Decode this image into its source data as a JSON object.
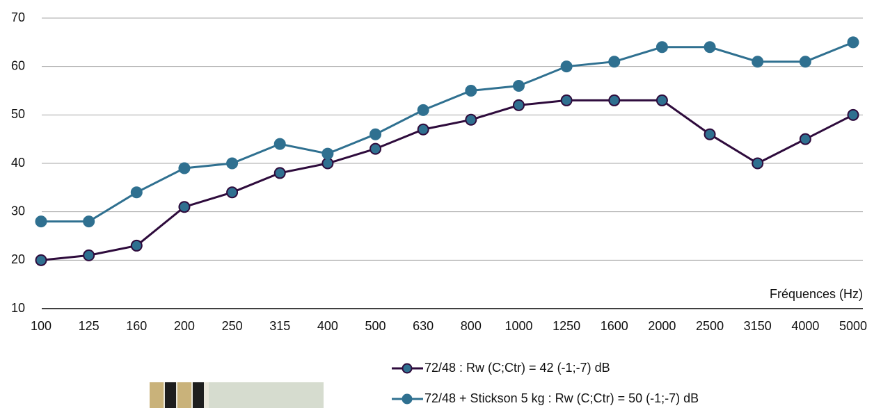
{
  "chart_data": {
    "type": "line",
    "x_label": "Fréquences (Hz)",
    "categories": [
      "100",
      "125",
      "160",
      "200",
      "250",
      "315",
      "400",
      "500",
      "630",
      "800",
      "1000",
      "1250",
      "1600",
      "2000",
      "2500",
      "3150",
      "4000",
      "5000"
    ],
    "series": [
      {
        "name": "72/48 : Rw (C;Ctr) = 42 (-1;-7) dB",
        "color": "#2e0b3c",
        "marker_color": "#2f7090",
        "values": [
          20,
          21,
          23,
          31,
          34,
          38,
          40,
          43,
          47,
          49,
          52,
          53,
          53,
          53,
          46,
          40,
          45,
          50
        ]
      },
      {
        "name": "72/48 + Stickson 5 kg : Rw (C;Ctr) = 50 (-1;-7) dB",
        "color": "#2f7090",
        "marker_color": "#2f7090",
        "values": [
          28,
          28,
          34,
          39,
          40,
          44,
          42,
          46,
          51,
          55,
          56,
          60,
          61,
          64,
          64,
          61,
          61,
          65
        ]
      }
    ],
    "ylim": [
      10,
      70
    ],
    "yticks": [
      10,
      20,
      30,
      40,
      50,
      60,
      70
    ],
    "grid": true
  }
}
